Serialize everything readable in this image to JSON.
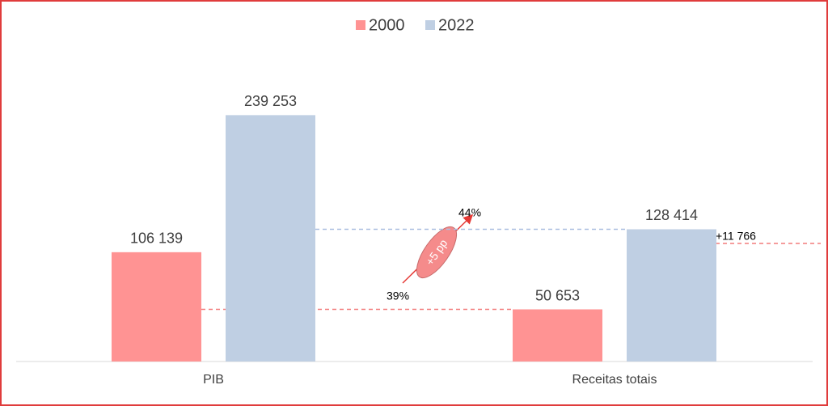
{
  "chart_data": {
    "type": "bar",
    "categories": [
      "PIB",
      "Receitas totais"
    ],
    "series": [
      {
        "name": "2000",
        "color": "#ff9393",
        "values": [
          106139,
          50653
        ],
        "value_labels": [
          "106 139",
          "50 653"
        ]
      },
      {
        "name": "2022",
        "color": "#bfcfe3",
        "values": [
          239253,
          128414
        ],
        "value_labels": [
          "239 253",
          "128 414"
        ]
      }
    ],
    "ylim": [
      0,
      300000
    ],
    "annotations": {
      "share_2000": "39%",
      "share_2022": "44%",
      "change": "+5 pp",
      "increase": "+11 766"
    },
    "legend": "top"
  }
}
